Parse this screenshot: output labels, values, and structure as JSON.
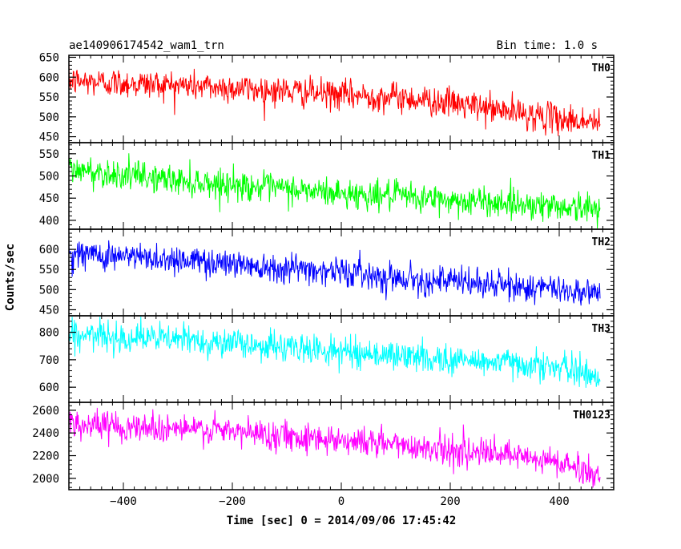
{
  "header": {
    "title": "ae140906174542_wam1_trn",
    "bin_time": "Bin time: 1.0 s"
  },
  "chart_data": {
    "type": "line",
    "title": "ae140906174542_wam1_trn",
    "xlabel": "Time [sec] 0 = 2014/09/06 17:45:42",
    "ylabel": "Counts/sec",
    "xlim": [
      -500,
      500
    ],
    "x_ticks": [
      -400,
      -200,
      0,
      200,
      400
    ],
    "x_range_data": [
      -500,
      475
    ],
    "grid": false,
    "panels": [
      {
        "name": "TH0",
        "color": "#ff0000",
        "ylim": [
          435,
          655
        ],
        "y_ticks": [
          450,
          500,
          550,
          600,
          650
        ],
        "trend": [
          [
            -500,
            590
          ],
          [
            -300,
            580
          ],
          [
            -100,
            565
          ],
          [
            0,
            555
          ],
          [
            100,
            550
          ],
          [
            200,
            535
          ],
          [
            300,
            515
          ],
          [
            400,
            495
          ],
          [
            475,
            485
          ]
        ]
      },
      {
        "name": "TH1",
        "color": "#00ff00",
        "ylim": [
          380,
          575
        ],
        "y_ticks": [
          400,
          450,
          500,
          550
        ],
        "trend": [
          [
            -500,
            515
          ],
          [
            -300,
            490
          ],
          [
            -100,
            470
          ],
          [
            0,
            460
          ],
          [
            100,
            455
          ],
          [
            200,
            445
          ],
          [
            300,
            440
          ],
          [
            400,
            432
          ],
          [
            475,
            425
          ]
        ]
      },
      {
        "name": "TH2",
        "color": "#0000ff",
        "ylim": [
          435,
          650
        ],
        "y_ticks": [
          450,
          500,
          550,
          600
        ],
        "trend": [
          [
            -500,
            590
          ],
          [
            -300,
            575
          ],
          [
            -100,
            555
          ],
          [
            0,
            545
          ],
          [
            100,
            530
          ],
          [
            200,
            520
          ],
          [
            300,
            510
          ],
          [
            400,
            500
          ],
          [
            475,
            495
          ]
        ]
      },
      {
        "name": "TH3",
        "color": "#00ffff",
        "ylim": [
          545,
          860
        ],
        "y_ticks": [
          600,
          700,
          800
        ],
        "trend": [
          [
            -500,
            790
          ],
          [
            -300,
            775
          ],
          [
            -100,
            745
          ],
          [
            0,
            730
          ],
          [
            100,
            715
          ],
          [
            200,
            700
          ],
          [
            300,
            690
          ],
          [
            350,
            685
          ],
          [
            400,
            670
          ],
          [
            475,
            640
          ]
        ]
      },
      {
        "name": "TH0123",
        "color": "#ff00ff",
        "ylim": [
          1900,
          2670
        ],
        "y_ticks": [
          2000,
          2200,
          2400,
          2600
        ],
        "trend": [
          [
            -500,
            2480
          ],
          [
            -300,
            2440
          ],
          [
            -100,
            2380
          ],
          [
            0,
            2340
          ],
          [
            100,
            2300
          ],
          [
            200,
            2250
          ],
          [
            300,
            2200
          ],
          [
            400,
            2140
          ],
          [
            475,
            2020
          ]
        ]
      }
    ]
  }
}
